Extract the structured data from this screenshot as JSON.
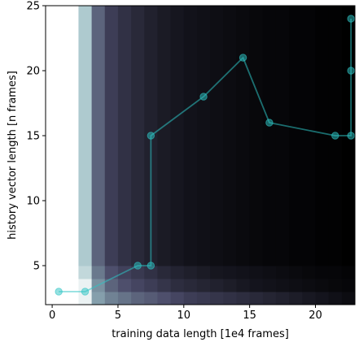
{
  "chart_data": {
    "type": "heatmap",
    "xlabel": "training data length [1e4 frames]",
    "ylabel": "history vector length [n frames]",
    "xlim": [
      -0.5,
      23
    ],
    "ylim": [
      2,
      25
    ],
    "xticks": [
      0,
      5,
      10,
      15,
      20
    ],
    "yticks": [
      5,
      10,
      15,
      20,
      25
    ],
    "heatmap": {
      "x_edges": [
        -0.5,
        2,
        3,
        4,
        5,
        6,
        7,
        8,
        9,
        10,
        11,
        12,
        13,
        14,
        15,
        16,
        17,
        18,
        19,
        20,
        21,
        22,
        23
      ],
      "y_edges": [
        2,
        3,
        4,
        5,
        25
      ],
      "colormap": "bone_r",
      "values": [
        [
          0.0,
          0.05,
          0.35,
          0.45,
          0.5,
          0.55,
          0.58,
          0.62,
          0.66,
          0.7,
          0.72,
          0.74,
          0.76,
          0.78,
          0.8,
          0.82,
          0.84,
          0.86,
          0.88,
          0.9,
          0.92,
          0.94
        ],
        [
          0.0,
          0.05,
          0.4,
          0.55,
          0.62,
          0.66,
          0.7,
          0.74,
          0.78,
          0.8,
          0.82,
          0.84,
          0.86,
          0.88,
          0.9,
          0.91,
          0.92,
          0.93,
          0.94,
          0.95,
          0.96,
          0.97
        ],
        [
          0.0,
          0.15,
          0.48,
          0.62,
          0.68,
          0.72,
          0.76,
          0.8,
          0.83,
          0.85,
          0.87,
          0.89,
          0.9,
          0.91,
          0.92,
          0.93,
          0.94,
          0.95,
          0.96,
          0.97,
          0.97,
          0.98
        ],
        [
          0.0,
          0.2,
          0.55,
          0.7,
          0.76,
          0.8,
          0.84,
          0.87,
          0.89,
          0.91,
          0.92,
          0.93,
          0.94,
          0.95,
          0.96,
          0.97,
          0.97,
          0.98,
          0.98,
          0.99,
          0.99,
          1.0
        ]
      ]
    },
    "series": [
      {
        "type": "line",
        "color": "#2ec4c4",
        "marker": "circle",
        "x": [
          0.5,
          2.5,
          6.5,
          7.5,
          7.5,
          11.5,
          14.5,
          16.5,
          21.5,
          22.7,
          22.7,
          22.7
        ],
        "y": [
          3,
          3,
          5,
          5,
          15,
          18,
          21,
          16,
          15,
          15,
          20,
          24
        ]
      }
    ]
  }
}
